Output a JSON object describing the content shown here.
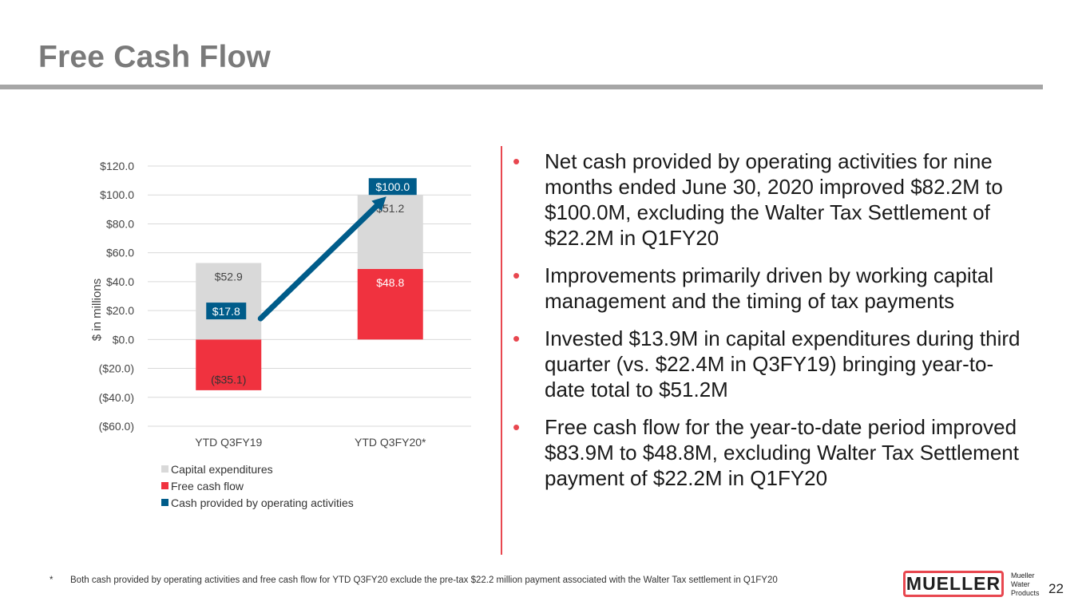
{
  "slide": {
    "title": "Free Cash Flow",
    "page_number": "22",
    "footnote_marker": "*",
    "footnote": "Both cash provided by operating activities and free cash flow for YTD Q3FY20 exclude the pre-tax $22.2 million payment associated with the Walter Tax settlement in Q1FY20",
    "logo_text": "MUELLER",
    "logo_subtext": [
      "Mueller",
      "Water",
      "Products"
    ]
  },
  "bullets": [
    "Net cash provided by operating activities for nine months ended June 30, 2020 improved $82.2M to $100.0M, excluding the Walter Tax Settlement of $22.2M in Q1FY20",
    "Improvements primarily driven by working capital management and the timing of tax payments",
    "Invested $13.9M in capital expenditures during third quarter (vs. $22.4M in Q3FY19) bringing year-to-date total to $51.2M",
    "Free cash flow for the year-to-date period improved $83.9M to $48.8M, excluding Walter Tax Settlement payment of $22.2M in Q1FY20"
  ],
  "colors": {
    "capex": "#d9d9d9",
    "fcf": "#f0323f",
    "ocf": "#005c8a",
    "accent": "#e8474f",
    "title": "#7a7a7a"
  },
  "chart_data": {
    "type": "bar",
    "stacked": true,
    "ylabel": "$ in millions",
    "ylim": [
      -60,
      120
    ],
    "yticks": [
      120,
      100,
      80,
      60,
      40,
      20,
      0,
      -20,
      -40,
      -60
    ],
    "ytick_labels": [
      "$120.0",
      "$100.0",
      "$80.0",
      "$60.0",
      "$40.0",
      "$20.0",
      "$0.0",
      "($20.0)",
      "($40.0)",
      "($60.0)"
    ],
    "grid": true,
    "legend_position": "bottom-left",
    "categories": [
      "YTD Q3FY19",
      "YTD Q3FY20*"
    ],
    "series": [
      {
        "name": "Capital expenditures",
        "values": [
          52.9,
          51.2
        ],
        "labels": [
          "$52.9",
          "$51.2"
        ],
        "color": "#d9d9d9",
        "kind": "bar"
      },
      {
        "name": "Free cash flow",
        "values": [
          -35.1,
          48.8
        ],
        "labels": [
          "($35.1)",
          "$48.8"
        ],
        "color": "#f0323f",
        "kind": "bar"
      },
      {
        "name": "Cash provided by operating activities",
        "values": [
          17.8,
          100.0
        ],
        "labels": [
          "$17.8",
          "$100.0"
        ],
        "color": "#005c8a",
        "kind": "arrow"
      }
    ]
  }
}
